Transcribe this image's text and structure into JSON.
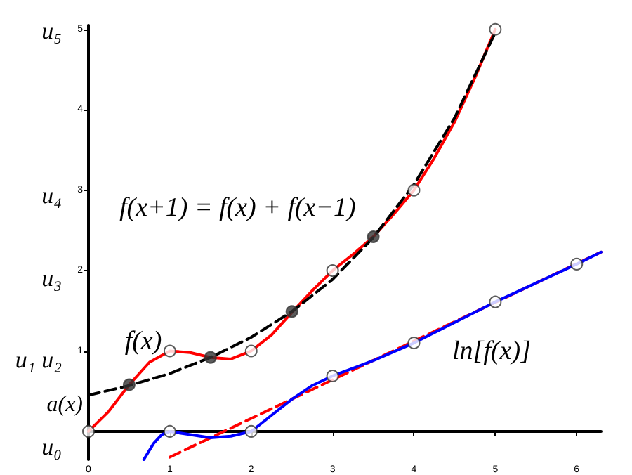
{
  "chart_data": {
    "type": "line",
    "annotations": [
      "f(x+1) = f(x) + f(x−1)",
      "f(x)",
      "ln[f(x)]",
      "a(x)",
      "u₀",
      "u₁ u₂",
      "u₃",
      "u₄",
      "u₅"
    ],
    "series": [
      {
        "color": "#ff0000",
        "line_style": "solid",
        "marker": "none",
        "x": [
          0,
          0.25,
          0.5,
          0.75,
          1,
          1.25,
          1.5,
          1.75,
          2,
          2.25,
          2.5,
          2.75,
          3,
          3.25,
          3.5,
          3.75,
          4,
          4.25,
          4.5,
          4.75,
          5
        ],
        "values": [
          0,
          0.25,
          0.58,
          0.86,
          1,
          0.98,
          0.92,
          0.9,
          1,
          1.2,
          1.48,
          1.75,
          2,
          2.2,
          2.42,
          2.7,
          3,
          3.4,
          3.85,
          4.4,
          5
        ]
      },
      {
        "color": "#000000",
        "line_style": "dashed",
        "marker": "none",
        "x": [
          0,
          0.5,
          1,
          1.5,
          2,
          2.5,
          3,
          3.5,
          4,
          4.5,
          5
        ],
        "values": [
          0.45,
          0.57,
          0.72,
          0.92,
          1.17,
          1.49,
          1.89,
          2.41,
          3.07,
          3.9,
          4.96
        ]
      },
      {
        "color": "#ff0000",
        "line_style": "dashed",
        "marker": "none",
        "x": [
          1,
          6.3
        ],
        "values": [
          -0.32,
          2.23
        ]
      },
      {
        "color": "#0000ff",
        "line_style": "solid",
        "marker": "none",
        "x": [
          0.68,
          0.8,
          0.9,
          1,
          1.25,
          1.5,
          1.75,
          2,
          2.25,
          2.5,
          2.75,
          3,
          3.5,
          4,
          5,
          6,
          6.3
        ],
        "values": [
          -0.35,
          -0.15,
          -0.04,
          0,
          -0.04,
          -0.08,
          -0.06,
          0,
          0.2,
          0.4,
          0.57,
          0.69,
          0.88,
          1.1,
          1.61,
          2.08,
          2.23
        ]
      },
      {
        "type": "scatter",
        "color": "#333333",
        "marker": "circle",
        "x": [
          0.5,
          1.5,
          2.5,
          3.5
        ],
        "values": [
          0.58,
          0.92,
          1.49,
          2.42
        ]
      },
      {
        "type": "scatter",
        "color": "#ffffff",
        "marker": "circle",
        "x": [
          0,
          1,
          2,
          3,
          4,
          5,
          1,
          2,
          3,
          4,
          5,
          6
        ],
        "values": [
          0,
          1,
          1,
          2,
          3,
          5,
          0,
          0,
          0.69,
          1.1,
          1.61,
          2.08
        ]
      }
    ],
    "xlim": [
      0,
      6.3
    ],
    "xticks": [
      0,
      1,
      2,
      3,
      4,
      5,
      6
    ],
    "ylim": [
      -0.35,
      5.05
    ],
    "yticks": [
      1,
      2,
      3,
      4,
      5
    ],
    "grid": false
  }
}
